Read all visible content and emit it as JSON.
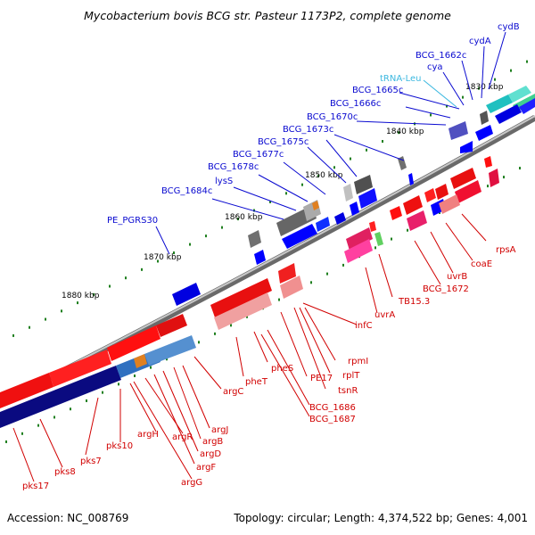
{
  "title": "Mycobacterium bovis BCG str. Pasteur 1173P2, complete genome",
  "accession": "Accession: NC_008769",
  "topology": "Topology: circular; Length: 4,374,522 bp; Genes: 4,001",
  "colors": {
    "plus_strand": "#e81010",
    "minus_strand": "#1010e0",
    "trna": "#3cb8e0",
    "backbone": "#808080",
    "tick": "#208020"
  },
  "kbp_labels": [
    "1830 kbp",
    "1840 kbp",
    "1850 kbp",
    "1860 kbp",
    "1870 kbp",
    "1880 kbp"
  ],
  "upper_labels": [
    "cydB",
    "cydA",
    "BCG_1662c",
    "cya",
    "tRNA-Leu",
    "BCG_1665c",
    "BCG_1666c",
    "BCG_1670c",
    "BCG_1673c",
    "BCG_1675c",
    "BCG_1677c",
    "BCG_1678c",
    "lysS",
    "BCG_1684c",
    "PE_PGRS30"
  ],
  "lower_labels": [
    "rpsA",
    "coaE",
    "uvrB",
    "BCG_1672",
    "TB15.3",
    "uvrA",
    "infC",
    "rpmI",
    "rplT",
    "tsnR",
    "PE17",
    "pheS",
    "pheT",
    "BCG_1686",
    "BCG_1687",
    "argC",
    "argJ",
    "argB",
    "argD",
    "argF",
    "argR",
    "argG",
    "argH",
    "pks10",
    "pks7",
    "pks8",
    "pks17"
  ]
}
